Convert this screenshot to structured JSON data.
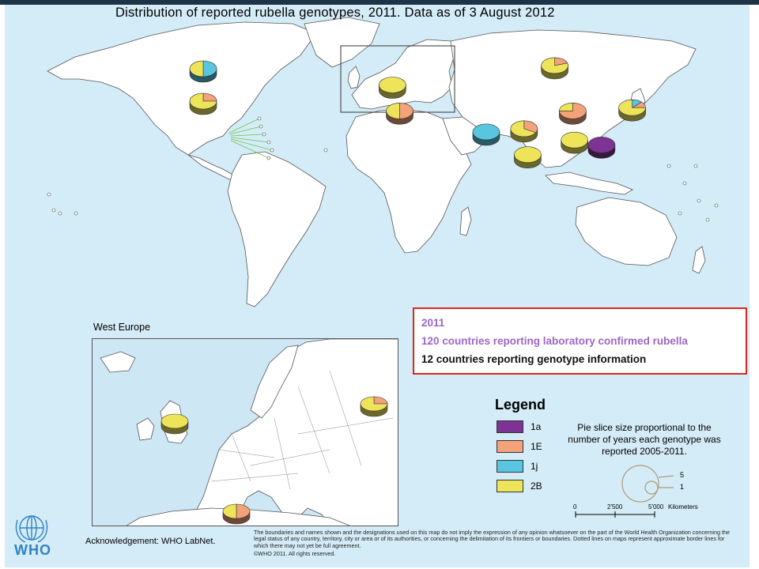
{
  "title": "Distribution of reported rubella genotypes, 2011. Data as of 3 August 2012",
  "info_box": {
    "year": "2011",
    "line1": "120 countries reporting laboratory confirmed rubella",
    "line2": "12 countries reporting genotype information"
  },
  "legend": {
    "title": "Legend",
    "items": [
      {
        "label": "1a",
        "color": "#7d3394"
      },
      {
        "label": "1E",
        "color": "#f4a27a"
      },
      {
        "label": "1j",
        "color": "#58c6e0"
      },
      {
        "label": "2B",
        "color": "#eee45a"
      }
    ],
    "note": "Pie slice size proportional to the number of years each genotype was reported 2005-2011.",
    "size_scale": [
      "5",
      "1"
    ]
  },
  "scale_bar": {
    "ticks": [
      "0",
      "2'500",
      "5'000"
    ],
    "unit": "Kilometers"
  },
  "inset": {
    "label": "West Europe"
  },
  "acknowledgement": "Acknowledgement: WHO LabNet.",
  "disclaimer": "The boundaries and names shown and the designations used on this map do not imply the expression of any opinion whatsoever on the part of the World Health Organization concerning the legal status of any country, territory, city or area or of its authorities, or concerning the delimitation of its frontiers or boundaries. Dotted lines on maps represent approximate border lines for which there may not yet be full agreement.",
  "copyright": "©WHO 2011. All rights reserved.",
  "logo_text": "WHO",
  "colors": {
    "topbar": "#1f3347",
    "ocean": "#d4ecf7",
    "land": "#ffffff",
    "info_border": "#d9281f",
    "info_accent": "#9b66c6"
  },
  "map_pies": [
    {
      "country": "Canada",
      "lon": -100,
      "lat": 60,
      "slices": [
        {
          "genotype": "1j",
          "years": 1
        },
        {
          "genotype": "2B",
          "years": 1
        }
      ]
    },
    {
      "country": "USA",
      "lon": -100,
      "lat": 40,
      "slices": [
        {
          "genotype": "1E",
          "years": 1
        },
        {
          "genotype": "2B",
          "years": 3
        }
      ]
    },
    {
      "country": "Europe",
      "lon": 5,
      "lat": 50,
      "slices": [
        {
          "genotype": "2B",
          "years": 1
        }
      ]
    },
    {
      "country": "Tunisia",
      "lon": 9,
      "lat": 34,
      "slices": [
        {
          "genotype": "1E",
          "years": 1
        },
        {
          "genotype": "2B",
          "years": 1
        }
      ]
    },
    {
      "country": "Russia",
      "lon": 95,
      "lat": 62,
      "slices": [
        {
          "genotype": "1E",
          "years": 1
        },
        {
          "genotype": "2B",
          "years": 4
        }
      ]
    },
    {
      "country": "Oman",
      "lon": 57,
      "lat": 21,
      "slices": [
        {
          "genotype": "1j",
          "years": 1
        }
      ]
    },
    {
      "country": "India",
      "lon": 78,
      "lat": 23,
      "slices": [
        {
          "genotype": "1E",
          "years": 1
        },
        {
          "genotype": "2B",
          "years": 2
        }
      ]
    },
    {
      "country": "China",
      "lon": 105,
      "lat": 34,
      "slices": [
        {
          "genotype": "1E",
          "years": 3
        },
        {
          "genotype": "2B",
          "years": 1
        }
      ]
    },
    {
      "country": "Japan",
      "lon": 138,
      "lat": 36,
      "slices": [
        {
          "genotype": "1j",
          "years": 1
        },
        {
          "genotype": "1E",
          "years": 1
        },
        {
          "genotype": "2B",
          "years": 6
        }
      ]
    },
    {
      "country": "Viet Nam",
      "lon": 106,
      "lat": 16,
      "slices": [
        {
          "genotype": "2B",
          "years": 1
        }
      ]
    },
    {
      "country": "Philippines",
      "lon": 121,
      "lat": 13,
      "slices": [
        {
          "genotype": "1a",
          "years": 1
        }
      ]
    },
    {
      "country": "Sri Lanka",
      "lon": 80,
      "lat": 7,
      "slices": [
        {
          "genotype": "2B",
          "years": 1
        }
      ]
    }
  ],
  "inset_pies": [
    {
      "country": "United Kingdom",
      "slices": [
        {
          "genotype": "2B",
          "years": 1
        }
      ]
    },
    {
      "country": "Belarus",
      "slices": [
        {
          "genotype": "1E",
          "years": 1
        },
        {
          "genotype": "2B",
          "years": 3
        }
      ]
    },
    {
      "country": "Tunisia",
      "slices": [
        {
          "genotype": "1E",
          "years": 1
        },
        {
          "genotype": "2B",
          "years": 1
        }
      ]
    }
  ]
}
